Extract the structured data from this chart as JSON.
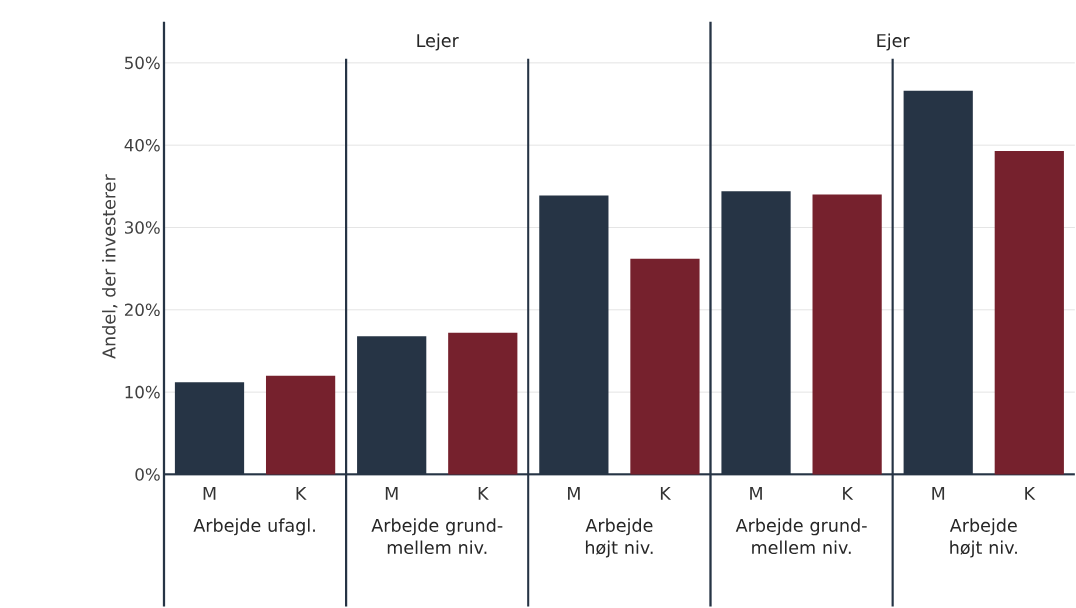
{
  "chart_data": {
    "type": "bar",
    "ylabel": "Andel, der investerer",
    "categories": [
      "Arbejde ufagl.",
      "Arbejde grund-mellem niv.",
      "Arbejde højt niv.",
      "Arbejde grund-mellem niv.",
      "Arbejde højt niv."
    ],
    "series": [
      {
        "name": "M",
        "color": "#263445",
        "values": [
          11.2,
          16.8,
          33.9,
          34.4,
          46.6
        ]
      },
      {
        "name": "K",
        "color": "#76212d",
        "values": [
          12.0,
          17.2,
          26.2,
          34.0,
          39.3
        ]
      }
    ],
    "annotations": [
      "Lejer",
      "Ejer"
    ],
    "ylim": [
      0,
      50.5
    ],
    "yticks": [
      {
        "value": 0,
        "label": "0%"
      },
      {
        "value": 10,
        "label": "10%"
      },
      {
        "value": 20,
        "label": "20%"
      },
      {
        "value": 30,
        "label": "30%"
      },
      {
        "value": 40,
        "label": "40%"
      },
      {
        "value": 50,
        "label": "50%"
      }
    ],
    "grid": "y"
  }
}
